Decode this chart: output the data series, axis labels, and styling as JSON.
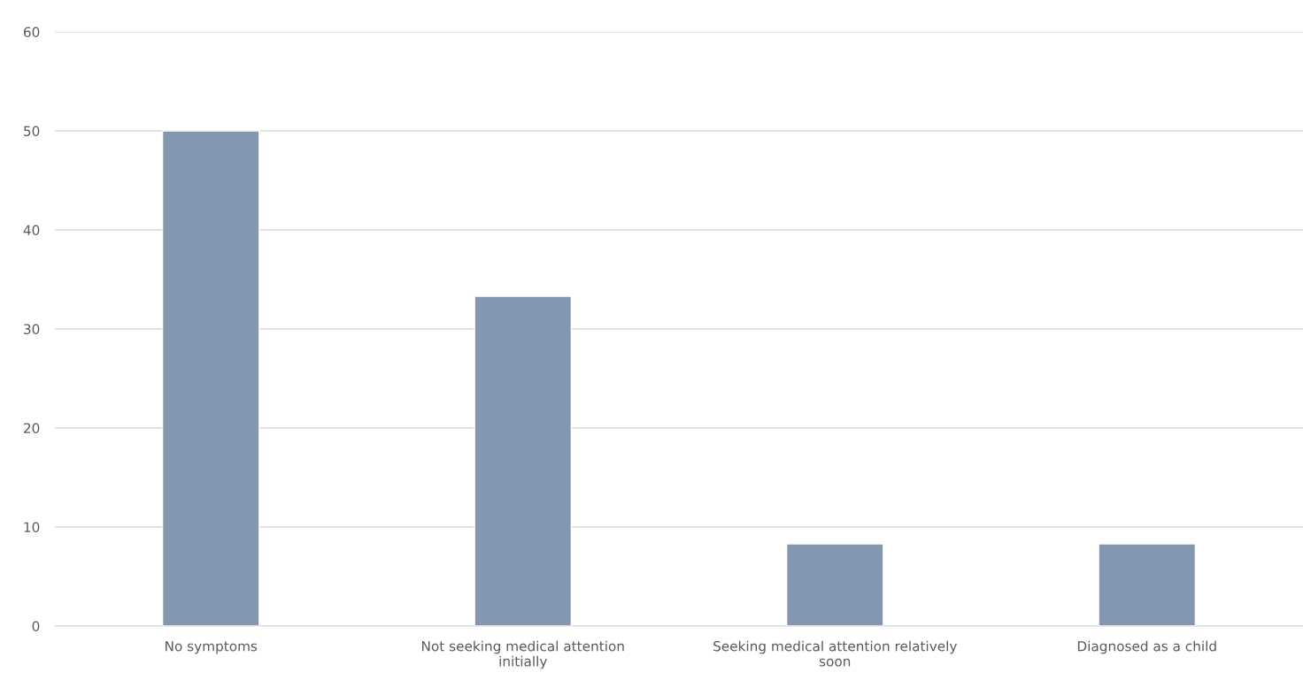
{
  "chart_data": {
    "type": "bar",
    "categories": [
      "No symptoms",
      "Not seeking medical attention\ninitially",
      "Seeking medical attention relatively\nsoon",
      "Diagnosed as a child"
    ],
    "values": [
      50,
      33.3,
      8.3,
      8.3
    ],
    "color": "#8497b0",
    "ylim": [
      0,
      60
    ],
    "yticks": [
      0,
      10,
      20,
      30,
      40,
      50,
      60
    ],
    "grid": "y",
    "legend": false
  }
}
